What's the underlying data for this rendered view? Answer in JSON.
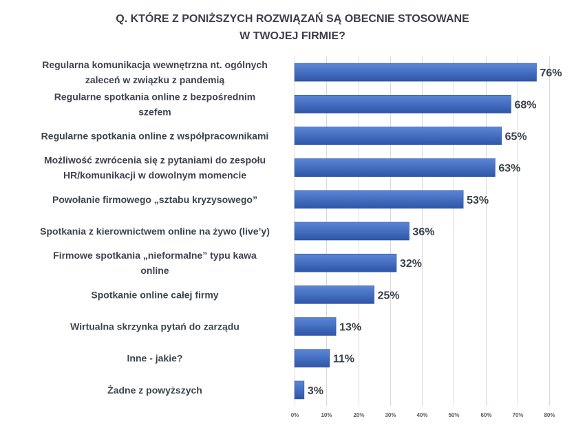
{
  "chart_data": {
    "type": "bar",
    "orientation": "horizontal",
    "title_lines": [
      "Q. KTÓRE Z PONIŻSZYCH ROZWIĄZAŃ SĄ OBECNIE STOSOWANE",
      "W TWOJEJ FIRMIE?"
    ],
    "categories": [
      [
        "Regularna komunikacja wewnętrzna nt. ogólnych",
        "zaleceń w związku z pandemią"
      ],
      [
        "Regularne spotkania online z bezpośrednim",
        "szefem"
      ],
      [
        "Regularne spotkania online z współpracownikami"
      ],
      [
        "Możliwość zwrócenia się z pytaniami do zespołu",
        "HR/komunikacji w dowolnym momencie"
      ],
      [
        "Powołanie firmowego „sztabu kryzysowego”"
      ],
      [
        "Spotkania z kierownictwem online na żywo (live’y)"
      ],
      [
        "Firmowe spotkania „nieformalne” typu kawa",
        "online"
      ],
      [
        "Spotkanie online całej firmy"
      ],
      [
        "Wirtualna skrzynka pytań do zarządu"
      ],
      [
        "Inne - jakie?"
      ],
      [
        "Żadne z powyższych"
      ]
    ],
    "values": [
      76,
      68,
      65,
      63,
      53,
      36,
      32,
      25,
      13,
      11,
      3
    ],
    "value_labels": [
      "76%",
      "68%",
      "65%",
      "63%",
      "53%",
      "36%",
      "32%",
      "25%",
      "13%",
      "11%",
      "3%"
    ],
    "xlim": [
      0,
      80
    ],
    "ticks": [
      0,
      10,
      20,
      30,
      40,
      50,
      60,
      70,
      80
    ],
    "tick_labels": [
      "0%",
      "10%",
      "20%",
      "30%",
      "40%",
      "50%",
      "60%",
      "70%",
      "80%"
    ],
    "grid": true,
    "colors": {
      "bar_top": "#5b86d6",
      "bar_bottom": "#2e56a8",
      "bar_edge": "#2a4f9c",
      "grid": "#d9d9d9"
    }
  }
}
